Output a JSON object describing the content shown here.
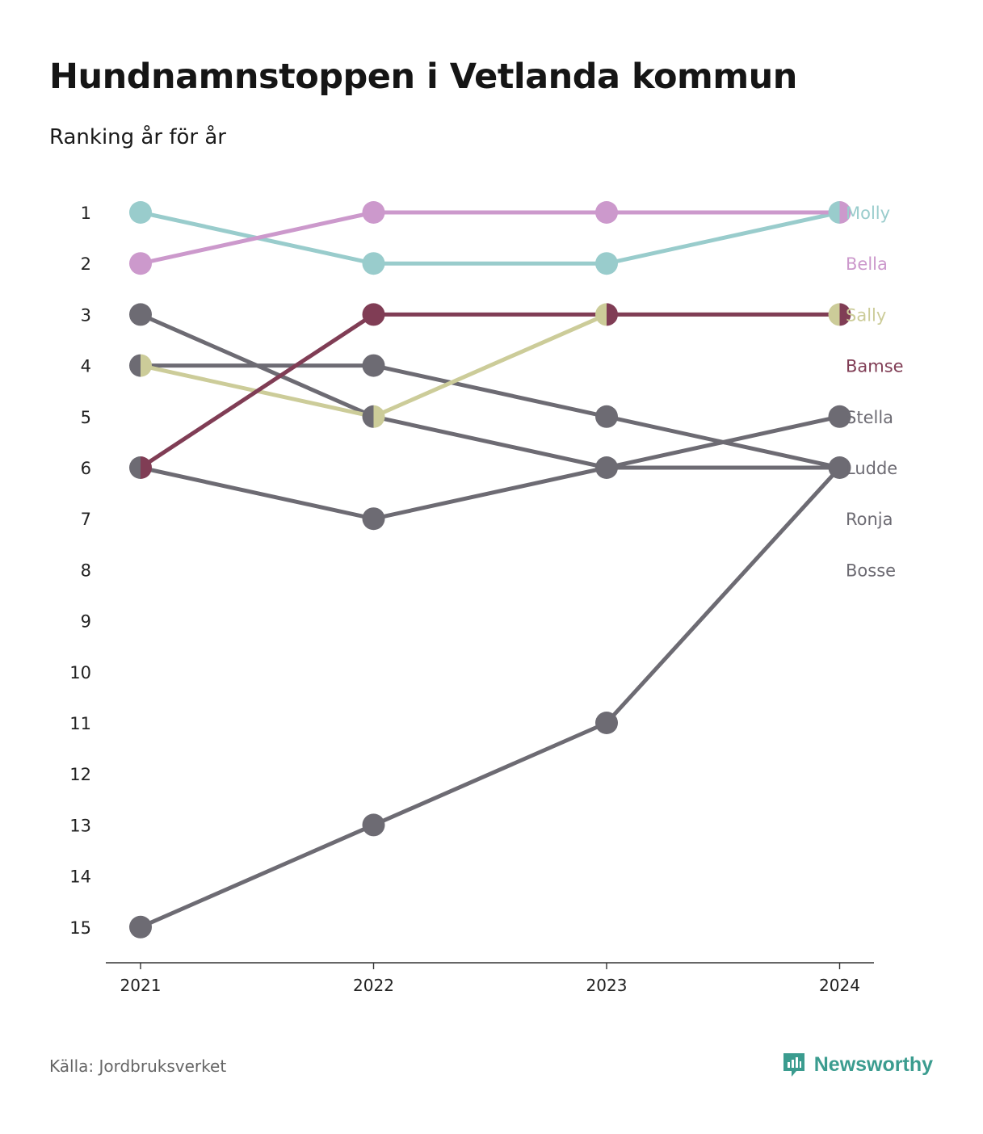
{
  "title": "Hundnamnstoppen i Vetlanda kommun",
  "subtitle": "Ranking år för år",
  "source": "Källa: Jordbruksverket",
  "brand": {
    "name": "Newsworthy",
    "icon": "newsworthy-logo-icon",
    "color": "#3b9c8f"
  },
  "chart_data": {
    "type": "line",
    "title": "Hundnamnstoppen i Vetlanda kommun",
    "subtitle": "Ranking år för år",
    "xlabel": "",
    "ylabel": "",
    "x": [
      "2021",
      "2022",
      "2023",
      "2024"
    ],
    "y_ticks": [
      1,
      2,
      3,
      4,
      5,
      6,
      7,
      8,
      9,
      10,
      11,
      12,
      13,
      14,
      15
    ],
    "ylim": [
      1,
      15
    ],
    "y_reversed": true,
    "grid": false,
    "legend": "right-end labels",
    "series": [
      {
        "name": "Molly",
        "color": "#99cccc",
        "values": [
          1,
          2,
          2,
          1
        ]
      },
      {
        "name": "Bella",
        "color": "#cc99cc",
        "values": [
          2,
          1,
          1,
          1
        ]
      },
      {
        "name": "Sally",
        "color": "#cccc99",
        "values": [
          4,
          5,
          3,
          3
        ]
      },
      {
        "name": "Bamse",
        "color": "#803d55",
        "values": [
          6,
          3,
          3,
          3
        ]
      },
      {
        "name": "Stella",
        "color": "#6d6b73",
        "values": [
          15,
          13,
          11,
          6
        ]
      },
      {
        "name": "Ludde",
        "color": "#6d6b73",
        "values": [
          4,
          4,
          5,
          6
        ]
      },
      {
        "name": "Ronja",
        "color": "#6d6b73",
        "values": [
          3,
          5,
          6,
          6
        ]
      },
      {
        "name": "Bosse",
        "color": "#6d6b73",
        "values": [
          6,
          7,
          6,
          5
        ]
      }
    ]
  }
}
